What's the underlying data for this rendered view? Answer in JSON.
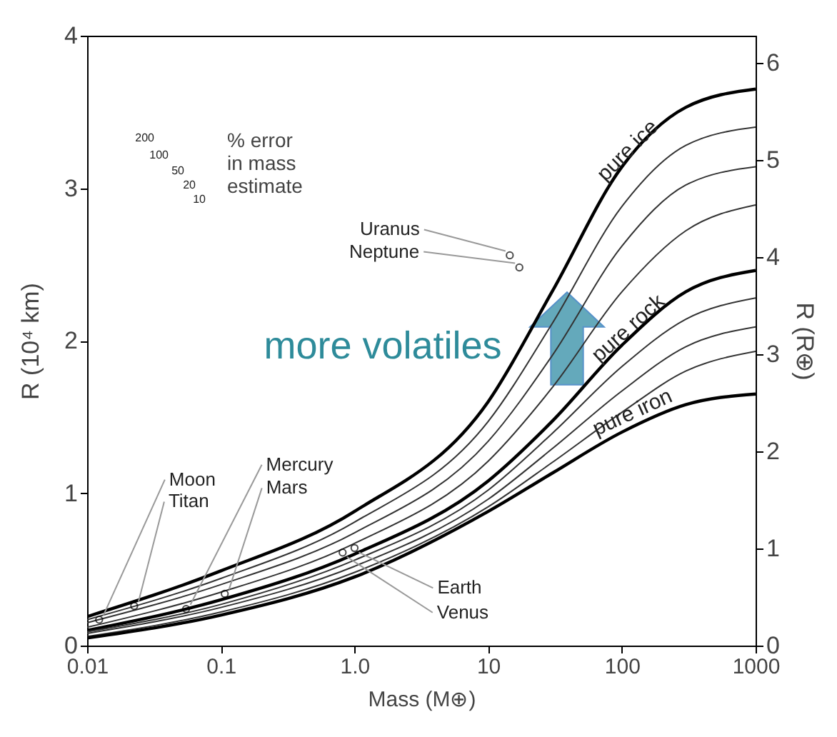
{
  "chart_data": {
    "type": "line",
    "xlabel": "Mass (M⊕)",
    "ylabel": "R (10⁴ km)",
    "y2label": "R (R⊕)",
    "x": [
      0.01,
      0.1,
      1,
      10,
      30,
      100,
      300,
      1000
    ],
    "series": [
      {
        "name": "pure ice",
        "color": "#000000",
        "values": [
          0.19,
          0.49,
          0.88,
          1.6,
          2.32,
          3.14,
          3.53,
          3.65
        ]
      },
      {
        "color": "#333333",
        "values": [
          0.17,
          0.44,
          0.81,
          1.47,
          2.11,
          2.88,
          3.28,
          3.4
        ]
      },
      {
        "color": "#333333",
        "values": [
          0.15,
          0.4,
          0.74,
          1.34,
          1.9,
          2.62,
          3.02,
          3.14
        ]
      },
      {
        "color": "#333333",
        "values": [
          0.12,
          0.35,
          0.67,
          1.21,
          1.69,
          2.32,
          2.72,
          2.89
        ]
      },
      {
        "name": "pure rock",
        "color": "#000000",
        "values": [
          0.1,
          0.3,
          0.6,
          1.08,
          1.47,
          1.97,
          2.32,
          2.46
        ]
      },
      {
        "color": "#333333",
        "values": [
          0.09,
          0.27,
          0.56,
          1.02,
          1.39,
          1.83,
          2.14,
          2.28
        ]
      },
      {
        "color": "#333333",
        "values": [
          0.08,
          0.25,
          0.52,
          0.96,
          1.29,
          1.67,
          1.96,
          2.09
        ]
      },
      {
        "color": "#333333",
        "values": [
          0.06,
          0.22,
          0.48,
          0.91,
          1.2,
          1.53,
          1.8,
          1.93
        ]
      },
      {
        "name": "pure iron",
        "color": "#000000",
        "values": [
          0.05,
          0.2,
          0.45,
          0.88,
          1.13,
          1.4,
          1.58,
          1.65
        ]
      },
      {
        "type": "scatter",
        "marker": "circle",
        "color": "#000000",
        "x": [
          0.0123,
          0.0225,
          0.055,
          0.107,
          1,
          0.815,
          14.5,
          17.1
        ],
        "values": [
          0.17,
          0.26,
          0.24,
          0.34,
          0.64,
          0.61,
          2.56,
          2.48
        ]
      }
    ],
    "log": "x",
    "xlim": [
      0.01,
      1000
    ],
    "xticks": [
      0.01,
      0.1,
      {
        "value": 1,
        "label": "1.0"
      },
      10,
      100,
      1000
    ],
    "ylim": [
      0,
      4
    ],
    "yticks": [
      0,
      1,
      2,
      3,
      4
    ],
    "y2lim": [
      0,
      6.278
    ],
    "y2ticks": [
      0,
      1,
      2,
      3,
      4,
      5,
      6
    ],
    "grid": false,
    "legend": false,
    "line_style": "solid",
    "annotations": [
      {
        "text": "Moon",
        "x": 0.0123,
        "y": 0.17
      },
      {
        "text": "Titan",
        "x": 0.0225,
        "y": 0.26
      },
      {
        "text": "Mercury",
        "x": 0.055,
        "y": 0.24
      },
      {
        "text": "Mars",
        "x": 0.107,
        "y": 0.34
      },
      {
        "text": "Earth",
        "x": 1,
        "y": 0.64
      },
      {
        "text": "Venus",
        "x": 0.815,
        "y": 0.61
      },
      {
        "text": "Uranus",
        "x": 14.5,
        "y": 2.56
      },
      {
        "text": "Neptune",
        "x": 17.1,
        "y": 2.48
      },
      "more volatiles",
      "% error",
      "in mass",
      "estimate",
      "200",
      "100",
      "50",
      "20",
      "10"
    ]
  }
}
